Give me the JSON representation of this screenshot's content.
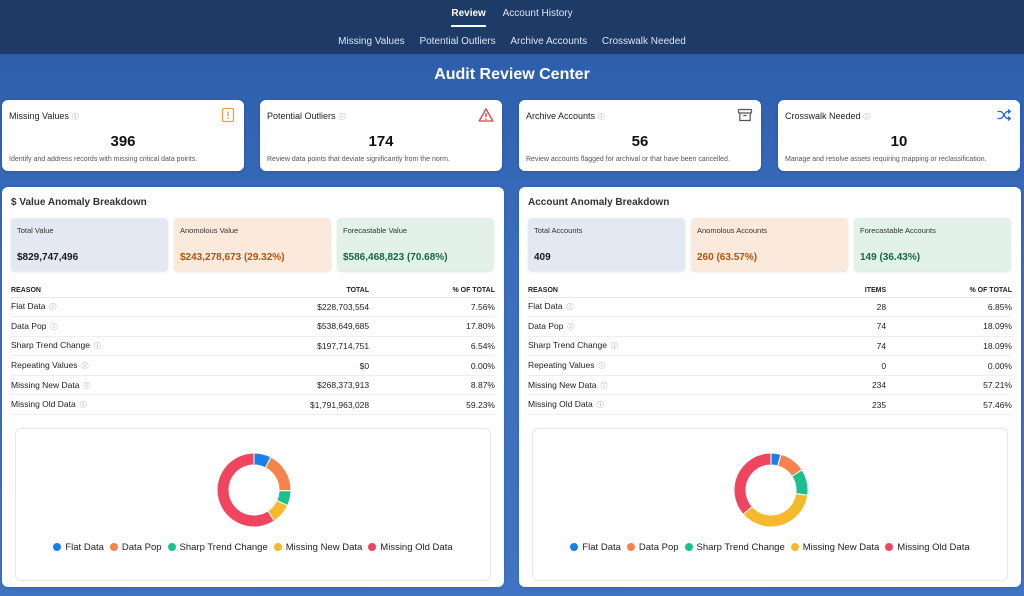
{
  "nav": {
    "primary": [
      {
        "label": "Review",
        "active": true
      },
      {
        "label": "Account History",
        "active": false
      }
    ],
    "secondary": [
      "Missing Values",
      "Potential Outliers",
      "Archive Accounts",
      "Crosswalk Needed"
    ]
  },
  "page_title": "Audit Review Center",
  "stat_cards": [
    {
      "label": "Missing Values",
      "value": "396",
      "desc": "Identify and address records with missing critical data points.",
      "icon": "alert-file-icon",
      "icon_color": "#e8a33a"
    },
    {
      "label": "Potential Outliers",
      "value": "174",
      "desc": "Review data points that deviate significantly from the norm.",
      "icon": "warning-triangle-icon",
      "icon_color": "#e53e3e"
    },
    {
      "label": "Archive Accounts",
      "value": "56",
      "desc": "Review accounts flagged for archival or that have been cancelled.",
      "icon": "archive-box-icon",
      "icon_color": "#555555"
    },
    {
      "label": "Crosswalk Needed",
      "value": "10",
      "desc": "Manage and resolve assets requiring mapping or reclassification.",
      "icon": "shuffle-icon",
      "icon_color": "#2563eb"
    }
  ],
  "value_panel": {
    "title": "$ Value Anomaly Breakdown",
    "summary": [
      {
        "label": "Total Value",
        "value": "$829,747,496"
      },
      {
        "label": "Anomolous Value",
        "value": "$243,278,673 (29.32%)"
      },
      {
        "label": "Forecastable Value",
        "value": "$586,468,823 (70.68%)"
      }
    ],
    "columns": [
      "REASON",
      "TOTAL",
      "% OF TOTAL"
    ],
    "rows": [
      {
        "reason": "Flat Data",
        "total": "$228,703,554",
        "pct": "7.56%"
      },
      {
        "reason": "Data Pop",
        "total": "$538,649,685",
        "pct": "17.80%"
      },
      {
        "reason": "Sharp Trend Change",
        "total": "$197,714,751",
        "pct": "6.54%"
      },
      {
        "reason": "Repeating Values",
        "total": "$0",
        "pct": "0.00%"
      },
      {
        "reason": "Missing New Data",
        "total": "$268,373,913",
        "pct": "8.87%"
      },
      {
        "reason": "Missing Old Data",
        "total": "$1,791,963,028",
        "pct": "59.23%"
      }
    ],
    "chart_data": {
      "type": "pie",
      "categories": [
        "Flat Data",
        "Data Pop",
        "Sharp Trend Change",
        "Missing New Data",
        "Missing Old Data"
      ],
      "values": [
        7.56,
        17.8,
        6.54,
        8.87,
        59.23
      ]
    }
  },
  "account_panel": {
    "title": "Account Anomaly Breakdown",
    "summary": [
      {
        "label": "Total Accounts",
        "value": "409"
      },
      {
        "label": "Anomolous Accounts",
        "value": "260 (63.57%)"
      },
      {
        "label": "Forecastable Accounts",
        "value": "149 (36.43%)"
      }
    ],
    "columns": [
      "REASON",
      "ITEMS",
      "% OF TOTAL"
    ],
    "rows": [
      {
        "reason": "Flat Data",
        "total": "28",
        "pct": "6.85%"
      },
      {
        "reason": "Data Pop",
        "total": "74",
        "pct": "18.09%"
      },
      {
        "reason": "Sharp Trend Change",
        "total": "74",
        "pct": "18.09%"
      },
      {
        "reason": "Repeating Values",
        "total": "0",
        "pct": "0.00%"
      },
      {
        "reason": "Missing New Data",
        "total": "234",
        "pct": "57.21%"
      },
      {
        "reason": "Missing Old Data",
        "total": "235",
        "pct": "57.46%"
      }
    ],
    "chart_data": {
      "type": "pie",
      "categories": [
        "Flat Data",
        "Data Pop",
        "Sharp Trend Change",
        "Missing New Data",
        "Missing Old Data"
      ],
      "values": [
        28,
        74,
        74,
        234,
        235
      ]
    }
  },
  "series_colors": {
    "Flat Data": "#1a7fe8",
    "Data Pop": "#f5844c",
    "Sharp Trend Change": "#1dbf8f",
    "Missing New Data": "#f6b92b",
    "Missing Old Data": "#f0455f"
  }
}
